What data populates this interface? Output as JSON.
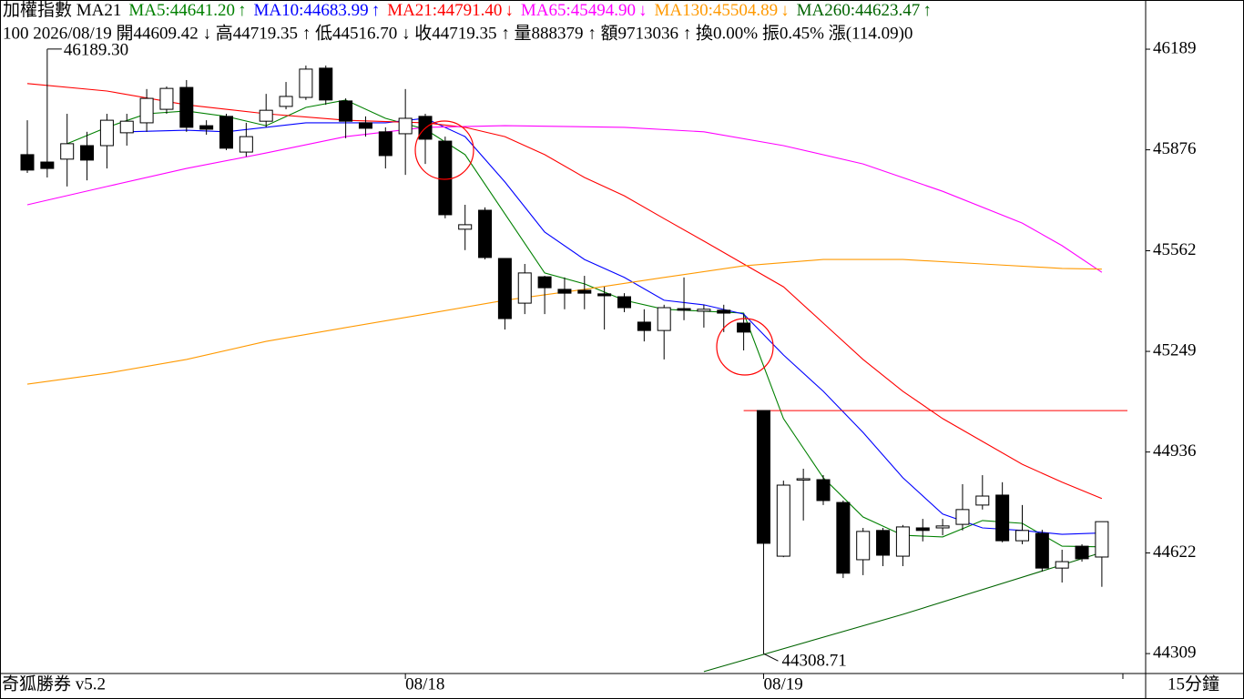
{
  "chart_data": {
    "type": "candlestick",
    "title": "加權指數 MA21",
    "info": "100 2026/08/19 開44609.42 ↓ 高44719.35 ↑ 低44516.70 ↓ 收44719.35 ↑ 量888379 ↑ 額9713036 ↑ 換0.00% 振0.45% 漲(114.09)0",
    "footer_left": "奇狐勝券 v5.2",
    "period": "15分鐘",
    "high_label": "46189.30",
    "low_label": "44308.71",
    "up_color": "#ffffff",
    "down_color": "#000000",
    "categories": [
      null,
      null,
      null,
      null,
      null,
      null,
      null,
      null,
      null,
      null,
      null,
      null,
      null,
      null,
      null,
      null,
      null,
      null,
      null,
      "08/18",
      null,
      null,
      null,
      null,
      null,
      null,
      null,
      null,
      null,
      null,
      null,
      null,
      null,
      null,
      null,
      null,
      null,
      "08/19",
      null,
      null,
      null,
      null,
      null,
      null,
      null,
      null,
      null,
      null,
      null,
      null,
      null,
      null,
      null,
      null,
      null
    ],
    "open": [
      45861,
      45838,
      45847,
      45889,
      45889,
      45929,
      45960,
      46002,
      46070,
      45951,
      45980,
      45869,
      45965,
      46011,
      46039,
      46130,
      46028,
      45960,
      45932,
      45926,
      45980,
      45903,
      45629,
      45688,
      45538,
      45399,
      45481,
      45442,
      45439,
      45428,
      45419,
      45340,
      45314,
      45382,
      45374,
      45377,
      45337,
      45065,
      44612,
      44850,
      44850,
      44779,
      44601,
      44692,
      44612,
      44700,
      44700,
      44711,
      44771,
      44802,
      44660,
      44683,
      44575,
      44643,
      44609.42
    ],
    "high": [
      45968,
      46189.3,
      45988,
      45932,
      45988,
      45988,
      46065,
      46073,
      46093,
      45968,
      45988,
      45960,
      46050,
      46087,
      46138,
      46138,
      46036,
      45980,
      45946,
      46065,
      45988,
      45917,
      45705,
      45697,
      45538,
      45521,
      45484,
      45479,
      45484,
      45450,
      45430,
      45380,
      45394,
      45479,
      45394,
      45394,
      45365,
      45065,
      44847,
      44884,
      44864,
      44785,
      44700,
      44700,
      44709,
      44728,
      44728,
      44836,
      44864,
      44842,
      44771,
      44694,
      44632,
      44649,
      44719.35
    ],
    "low": [
      45804,
      45790,
      45762,
      45781,
      45818,
      45889,
      45932,
      45988,
      45932,
      45923,
      45875,
      45855,
      45946,
      46002,
      46031,
      46016,
      45912,
      45917,
      45818,
      45798,
      45832,
      45663,
      45564,
      45535,
      45317,
      45365,
      45365,
      45380,
      45380,
      45317,
      45371,
      45280,
      45224,
      45346,
      45323,
      45309,
      45252,
      44308.71,
      44609,
      44723,
      44771,
      44544,
      44553,
      44581,
      44581,
      44658,
      44677,
      44692,
      44757,
      44655,
      44649,
      44564,
      44530,
      44595,
      44516.7
    ],
    "close": [
      45813,
      45818,
      45895,
      45844,
      45968,
      45965,
      46036,
      46067,
      45946,
      45940,
      45881,
      45917,
      45999,
      46042,
      46127,
      46031,
      45965,
      45943,
      45858,
      45974,
      45909,
      45674,
      45643,
      45541,
      45351,
      45493,
      45447,
      45430,
      45430,
      45422,
      45385,
      45314,
      45385,
      45377,
      45380,
      45368,
      45309,
      44652,
      44833,
      44853,
      44785,
      44559,
      44689,
      44615,
      44703,
      44692,
      44706,
      44757,
      44799,
      44660,
      44692,
      44575,
      44595,
      44604,
      44719.35
    ],
    "series": [
      {
        "name": "MA5:44641.20",
        "trend": "↑",
        "color": "#008000",
        "x": [
          2,
          4,
          6,
          8,
          10,
          12,
          14,
          16,
          18,
          20,
          22,
          24,
          26,
          28,
          30,
          32,
          34,
          36,
          38,
          40,
          42,
          44,
          46,
          48,
          50,
          52,
          54
        ],
        "values": [
          45895,
          45946,
          45988,
          45997,
          45980,
          45951,
          46008,
          46031,
          45974,
          45940,
          45861,
          45677,
          45493,
          45459,
          45408,
          45380,
          45374,
          45368,
          45040,
          44856,
          44734,
          44677,
          44672,
          44723,
          44714,
          44643,
          44641.2
        ]
      },
      {
        "name": "MA10:44683.99",
        "trend": "↑",
        "color": "#0000ff",
        "x": [
          5,
          8,
          10,
          14,
          18,
          20,
          22,
          24,
          26,
          28,
          30,
          32,
          34,
          36,
          38,
          40,
          42,
          44,
          46,
          48,
          50,
          52,
          54
        ],
        "values": [
          45932,
          45937,
          45932,
          45960,
          45960,
          45974,
          45917,
          45776,
          45620,
          45535,
          45479,
          45408,
          45394,
          45365,
          45238,
          45125,
          44997,
          44856,
          44743,
          44700,
          44692,
          44680,
          44683.99
        ]
      },
      {
        "name": "MA21:44791.40",
        "trend": "↓",
        "color": "#ff0000",
        "x": [
          0,
          4,
          8,
          12,
          16,
          20,
          22,
          24,
          26,
          28,
          30,
          32,
          34,
          36,
          38,
          40,
          42,
          44,
          46,
          48,
          50,
          52,
          54
        ],
        "values": [
          46082,
          46059,
          46016,
          45988,
          45968,
          45960,
          45946,
          45917,
          45861,
          45790,
          45733,
          45662,
          45592,
          45521,
          45450,
          45337,
          45224,
          45125,
          45040,
          44969,
          44898,
          44842,
          44791.4
        ]
      },
      {
        "name": "MA65:45494.90",
        "trend": "↓",
        "color": "#ff00ff",
        "x": [
          0,
          4,
          8,
          12,
          16,
          20,
          24,
          30,
          34,
          38,
          42,
          46,
          50,
          52,
          54
        ],
        "values": [
          45705,
          45762,
          45818,
          45866,
          45917,
          45946,
          45951,
          45946,
          45932,
          45889,
          45832,
          45747,
          45648,
          45578,
          45494.9
        ]
      },
      {
        "name": "MA130:45504.89",
        "trend": "↓",
        "color": "#ff9900",
        "x": [
          0,
          4,
          8,
          12,
          16,
          20,
          24,
          28,
          32,
          36,
          40,
          44,
          48,
          52,
          54
        ],
        "values": [
          45147,
          45181,
          45224,
          45280,
          45323,
          45365,
          45408,
          45442,
          45479,
          45515,
          45535,
          45535,
          45521,
          45507,
          45504.89
        ]
      },
      {
        "name": "MA260:44623.47",
        "trend": "↑",
        "color": "#006400",
        "x": [
          34,
          44,
          54
        ],
        "values": [
          44253,
          44431,
          44623.47
        ]
      }
    ],
    "hline": {
      "value": 45065,
      "color": "#ff0000"
    },
    "ylim": [
      44247,
      46342
    ],
    "yticks": [
      46189,
      45876,
      45562,
      45249,
      44936,
      44622,
      44309
    ]
  }
}
